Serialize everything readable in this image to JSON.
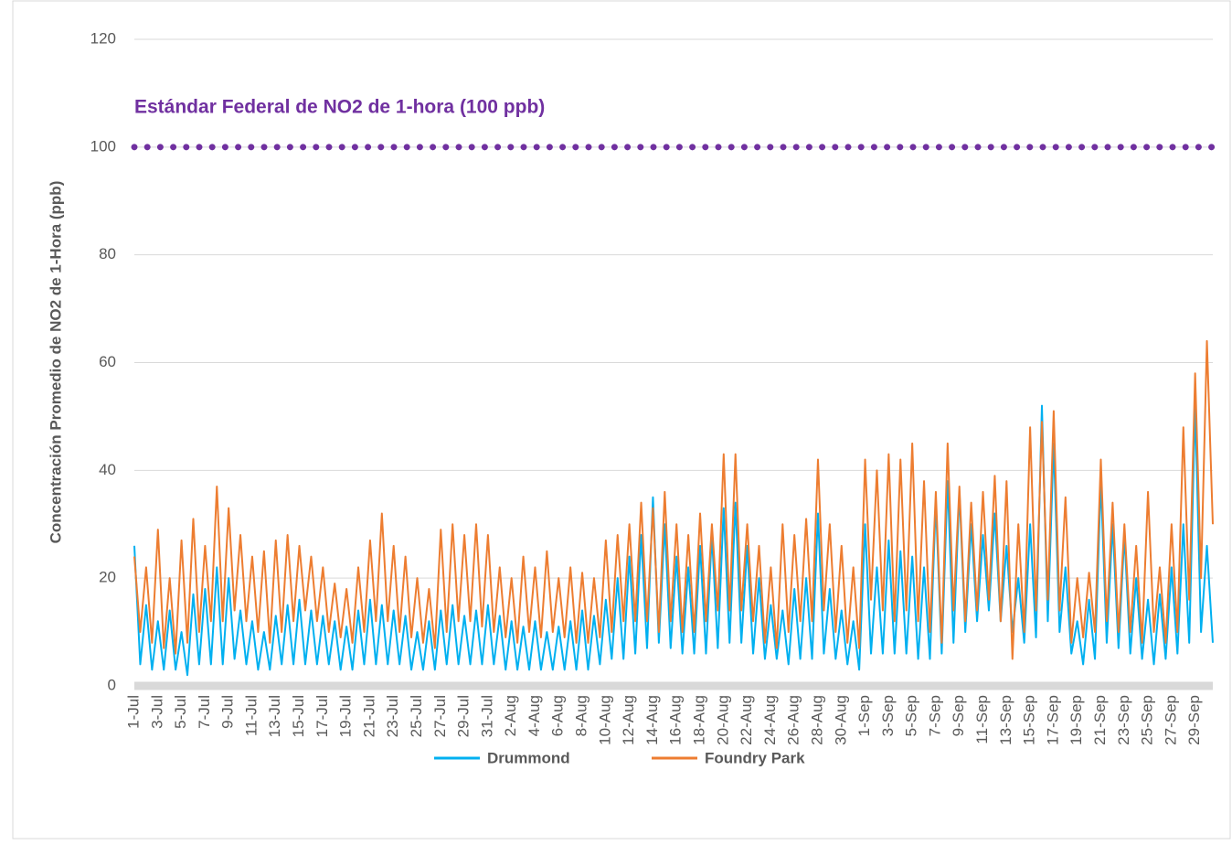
{
  "chart_data": {
    "type": "line",
    "y_label": "Concentración Promedio de NO2 de 1-Hora (ppb)",
    "reference": {
      "value": 100,
      "label": "Estándar Federal de NO2 de 1-hora (100 ppb)",
      "color": "#7030a0"
    },
    "ylim": [
      0,
      120
    ],
    "yticks": [
      0,
      20,
      40,
      60,
      80,
      100,
      120
    ],
    "grid": true,
    "legend": "bottom",
    "categories": [
      "1-Jul",
      null,
      null,
      null,
      "3-Jul",
      null,
      null,
      null,
      "5-Jul",
      null,
      null,
      null,
      "7-Jul",
      null,
      null,
      null,
      "9-Jul",
      null,
      null,
      null,
      "11-Jul",
      null,
      null,
      null,
      "13-Jul",
      null,
      null,
      null,
      "15-Jul",
      null,
      null,
      null,
      "17-Jul",
      null,
      null,
      null,
      "19-Jul",
      null,
      null,
      null,
      "21-Jul",
      null,
      null,
      null,
      "23-Jul",
      null,
      null,
      null,
      "25-Jul",
      null,
      null,
      null,
      "27-Jul",
      null,
      null,
      null,
      "29-Jul",
      null,
      null,
      null,
      "31-Jul",
      null,
      null,
      null,
      "2-Aug",
      null,
      null,
      null,
      "4-Aug",
      null,
      null,
      null,
      "6-Aug",
      null,
      null,
      null,
      "8-Aug",
      null,
      null,
      null,
      "10-Aug",
      null,
      null,
      null,
      "12-Aug",
      null,
      null,
      null,
      "14-Aug",
      null,
      null,
      null,
      "16-Aug",
      null,
      null,
      null,
      "18-Aug",
      null,
      null,
      null,
      "20-Aug",
      null,
      null,
      null,
      "22-Aug",
      null,
      null,
      null,
      "24-Aug",
      null,
      null,
      null,
      "26-Aug",
      null,
      null,
      null,
      "28-Aug",
      null,
      null,
      null,
      "30-Aug",
      null,
      null,
      null,
      "1-Sep",
      null,
      null,
      null,
      "3-Sep",
      null,
      null,
      null,
      "5-Sep",
      null,
      null,
      null,
      "7-Sep",
      null,
      null,
      null,
      "9-Sep",
      null,
      null,
      null,
      "11-Sep",
      null,
      null,
      null,
      "13-Sep",
      null,
      null,
      null,
      "15-Sep",
      null,
      null,
      null,
      "17-Sep",
      null,
      null,
      null,
      "19-Sep",
      null,
      null,
      null,
      "21-Sep",
      null,
      null,
      null,
      "23-Sep",
      null,
      null,
      null,
      "25-Sep",
      null,
      null,
      null,
      "27-Sep",
      null,
      null,
      null,
      "29-Sep",
      null,
      null,
      null
    ],
    "series": [
      {
        "name": "Drummond",
        "color": "#00b0f0",
        "values": [
          26,
          4,
          15,
          3,
          12,
          3,
          14,
          3,
          10,
          2,
          17,
          4,
          18,
          4,
          22,
          4,
          20,
          5,
          14,
          4,
          12,
          3,
          10,
          3,
          13,
          4,
          15,
          4,
          16,
          4,
          14,
          4,
          13,
          4,
          12,
          3,
          11,
          3,
          14,
          4,
          16,
          4,
          15,
          4,
          14,
          4,
          13,
          3,
          10,
          3,
          12,
          3,
          14,
          4,
          15,
          4,
          13,
          4,
          14,
          4,
          15,
          4,
          13,
          3,
          12,
          3,
          11,
          3,
          12,
          3,
          10,
          3,
          11,
          3,
          12,
          3,
          14,
          3,
          13,
          4,
          16,
          5,
          20,
          5,
          24,
          6,
          28,
          7,
          35,
          8,
          30,
          7,
          24,
          6,
          22,
          6,
          26,
          6,
          28,
          7,
          33,
          8,
          34,
          8,
          26,
          6,
          20,
          5,
          15,
          5,
          14,
          4,
          18,
          5,
          20,
          5,
          32,
          6,
          18,
          5,
          14,
          4,
          12,
          3,
          30,
          6,
          22,
          6,
          27,
          6,
          25,
          6,
          24,
          5,
          22,
          5,
          34,
          6,
          38,
          8,
          36,
          10,
          30,
          12,
          28,
          14,
          32,
          12,
          26,
          10,
          20,
          8,
          30,
          9,
          52,
          12,
          45,
          10,
          22,
          6,
          12,
          4,
          16,
          5,
          38,
          8,
          30,
          7,
          28,
          6,
          20,
          5,
          16,
          4,
          17,
          5,
          22,
          6,
          30,
          8,
          52,
          10,
          26,
          8
        ]
      },
      {
        "name": "Foundry Park",
        "color": "#ed7d31",
        "values": [
          24,
          10,
          22,
          8,
          29,
          7,
          20,
          6,
          27,
          8,
          31,
          10,
          26,
          12,
          37,
          12,
          33,
          14,
          28,
          12,
          24,
          10,
          25,
          8,
          27,
          10,
          28,
          12,
          26,
          14,
          24,
          12,
          22,
          10,
          19,
          9,
          18,
          8,
          22,
          10,
          27,
          12,
          32,
          12,
          26,
          10,
          24,
          9,
          20,
          8,
          18,
          7,
          29,
          10,
          30,
          12,
          28,
          12,
          30,
          11,
          28,
          10,
          22,
          9,
          20,
          8,
          24,
          10,
          22,
          9,
          25,
          10,
          20,
          9,
          22,
          8,
          21,
          8,
          20,
          9,
          27,
          10,
          28,
          12,
          30,
          12,
          34,
          12,
          33,
          10,
          36,
          12,
          30,
          10,
          28,
          10,
          32,
          12,
          30,
          14,
          43,
          14,
          43,
          14,
          30,
          12,
          26,
          8,
          22,
          7,
          30,
          10,
          28,
          12,
          31,
          12,
          42,
          14,
          30,
          10,
          26,
          8,
          22,
          7,
          42,
          16,
          40,
          14,
          43,
          12,
          42,
          14,
          45,
          12,
          38,
          10,
          36,
          8,
          45,
          14,
          37,
          12,
          34,
          14,
          36,
          16,
          39,
          12,
          38,
          5,
          30,
          10,
          48,
          14,
          49,
          16,
          51,
          14,
          35,
          8,
          20,
          9,
          21,
          10,
          42,
          12,
          34,
          10,
          30,
          10,
          26,
          8,
          36,
          10,
          22,
          8,
          30,
          10,
          48,
          16,
          58,
          20,
          64,
          30
        ]
      }
    ]
  }
}
